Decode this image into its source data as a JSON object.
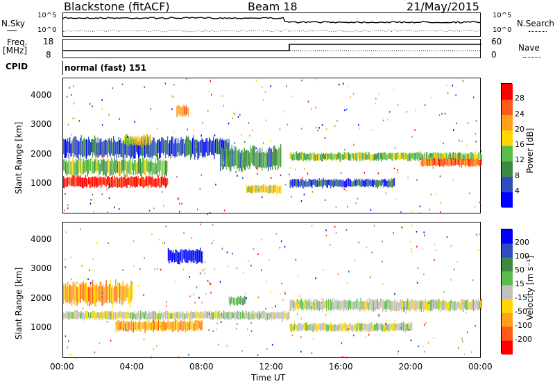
{
  "header": {
    "title_left": "Blackstone (fitACF)",
    "title_mid": "Beam 18",
    "title_right": "21/May/2015"
  },
  "panel_labels": {
    "nsky": "N.Sky",
    "nsearch": "N.Search",
    "freq": "Freq.",
    "freq_unit": "[MHz]",
    "nave": "Nave",
    "cpid": "CPID",
    "cpid_value": "normal (fast) 151"
  },
  "small_axes": {
    "noise_left_ticks": [
      "10^5",
      "10^0"
    ],
    "noise_right_ticks": [
      "10^5",
      "10^0"
    ],
    "freq_left_ticks": [
      "18",
      "8"
    ],
    "freq_right_ticks": [
      "60",
      "0"
    ]
  },
  "chart_data": [
    {
      "type": "heatmap",
      "name": "power",
      "ylabel": "Slant Range [km]",
      "yticks": [
        "1000",
        "2000",
        "3000",
        "4000"
      ],
      "ylim": [
        0,
        4600
      ],
      "xlim": [
        0,
        24
      ],
      "colorbar_label": "Power [dB]",
      "colorbar_ticks": [
        "4",
        "8",
        "12",
        "16",
        "20",
        "24",
        "28"
      ],
      "colorbar_colors": [
        "#0000ff",
        "#2c4cc0",
        "#3c8a40",
        "#5bbd4a",
        "#ffd700",
        "#ff9f1a",
        "#ff5a1a",
        "#ff0000"
      ],
      "bands": [
        {
          "t0": 0.0,
          "t1": 6.0,
          "y0": 900,
          "y1": 1300,
          "level": 7
        },
        {
          "t0": 0.0,
          "t1": 6.0,
          "y0": 1300,
          "y1": 1900,
          "level": 3
        },
        {
          "t0": 0.0,
          "t1": 9.5,
          "y0": 1900,
          "y1": 2600,
          "level": 1
        },
        {
          "t0": 3.5,
          "t1": 5.0,
          "y0": 2300,
          "y1": 2700,
          "level": 4
        },
        {
          "t0": 6.5,
          "t1": 7.2,
          "y0": 3300,
          "y1": 3700,
          "level": 5
        },
        {
          "t0": 9.0,
          "t1": 12.5,
          "y0": 1500,
          "y1": 2300,
          "level": 2
        },
        {
          "t0": 10.5,
          "t1": 12.5,
          "y0": 700,
          "y1": 1000,
          "level": 4
        },
        {
          "t0": 13.0,
          "t1": 24.0,
          "y0": 1800,
          "y1": 2100,
          "level": 3
        },
        {
          "t0": 20.5,
          "t1": 24.0,
          "y0": 1600,
          "y1": 1900,
          "level": 6
        },
        {
          "t0": 13.0,
          "t1": 19.0,
          "y0": 900,
          "y1": 1200,
          "level": 1
        }
      ]
    },
    {
      "type": "heatmap",
      "name": "velocity",
      "xlabel": "Time UT",
      "ylabel": "Slant Range [km]",
      "yticks": [
        "1000",
        "2000",
        "3000",
        "4000"
      ],
      "ylim": [
        0,
        4600
      ],
      "xlim": [
        0,
        24
      ],
      "xticks": [
        "00:00",
        "04:00",
        "08:00",
        "12:00",
        "16:00",
        "20:00",
        "00:00"
      ],
      "colorbar_label": "Velocity [m s⁻¹]",
      "colorbar_ticks": [
        "-200",
        "-100",
        "-50",
        "-15",
        "15",
        "50",
        "100",
        "200"
      ],
      "colorbar_colors": [
        "#ff0000",
        "#ff5a1a",
        "#ff9f1a",
        "#ffd700",
        "#c0c0c0",
        "#5bbd4a",
        "#3c8a40",
        "#2c4cc0",
        "#0000ff"
      ],
      "bands": [
        {
          "t0": 0.0,
          "t1": 13.0,
          "y0": 1300,
          "y1": 1600,
          "level": 4
        },
        {
          "t0": 0.0,
          "t1": 4.0,
          "y0": 1800,
          "y1": 2600,
          "level": 2
        },
        {
          "t0": 3.0,
          "t1": 8.0,
          "y0": 900,
          "y1": 1300,
          "level": 2
        },
        {
          "t0": 6.0,
          "t1": 8.0,
          "y0": 3200,
          "y1": 3700,
          "level": 8
        },
        {
          "t0": 9.5,
          "t1": 10.5,
          "y0": 1800,
          "y1": 2100,
          "level": 5
        },
        {
          "t0": 13.0,
          "t1": 24.0,
          "y0": 1600,
          "y1": 2000,
          "level": 4
        },
        {
          "t0": 13.0,
          "t1": 20.0,
          "y0": 900,
          "y1": 1200,
          "level": 4
        }
      ]
    }
  ]
}
